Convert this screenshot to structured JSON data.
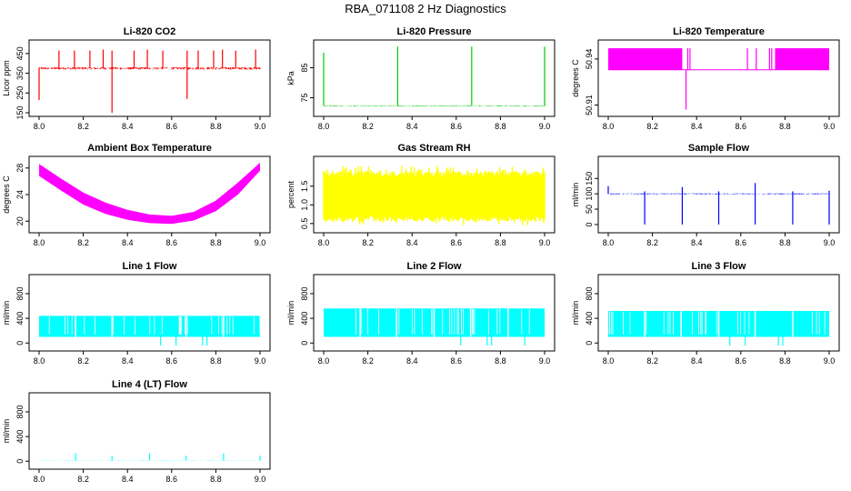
{
  "title": "RBA_071108  2 Hz Diagnostics",
  "colors": {
    "red": "#ff0000",
    "green": "#00cc00",
    "magenta": "#ff00ff",
    "yellow": "#ffff00",
    "blue": "#0000ff",
    "cyan": "#00ffff"
  },
  "chart_data": [
    {
      "type": "line",
      "title": "Li-820 CO2",
      "ylabel": "Licor ppm",
      "xlim": [
        8.0,
        9.0
      ],
      "ylim": [
        150,
        500
      ],
      "xticks": [
        "8.0",
        "8.2",
        "8.4",
        "8.6",
        "8.8",
        "9.0"
      ],
      "yticks": [
        "150",
        "250",
        "350",
        "450"
      ],
      "color": "red",
      "baseline": 375,
      "band": 12,
      "spikes_up": [
        {
          "x": 8.09,
          "y": 465
        },
        {
          "x": 8.16,
          "y": 465
        },
        {
          "x": 8.23,
          "y": 465
        },
        {
          "x": 8.29,
          "y": 470
        },
        {
          "x": 8.33,
          "y": 465
        },
        {
          "x": 8.43,
          "y": 465
        },
        {
          "x": 8.49,
          "y": 470
        },
        {
          "x": 8.56,
          "y": 465
        },
        {
          "x": 8.67,
          "y": 465
        },
        {
          "x": 8.72,
          "y": 465
        },
        {
          "x": 8.79,
          "y": 465
        },
        {
          "x": 8.83,
          "y": 470
        },
        {
          "x": 8.89,
          "y": 465
        },
        {
          "x": 8.98,
          "y": 470
        }
      ],
      "spikes_down": [
        {
          "x": 8.0,
          "y": 215
        },
        {
          "x": 8.33,
          "y": 150
        },
        {
          "x": 8.67,
          "y": 220
        }
      ]
    },
    {
      "type": "line",
      "title": "Li-820 Pressure",
      "ylabel": "kPa",
      "xlim": [
        8.0,
        9.0
      ],
      "ylim": [
        70,
        93
      ],
      "xticks": [
        "8.0",
        "8.2",
        "8.4",
        "8.6",
        "8.8",
        "9.0"
      ],
      "yticks": [
        "75",
        "85"
      ],
      "color": "green",
      "baseline": 72.3,
      "band": 0.3,
      "spikes_up": [
        {
          "x": 8.0,
          "y": 90
        },
        {
          "x": 8.335,
          "y": 92
        },
        {
          "x": 8.67,
          "y": 92
        },
        {
          "x": 9.0,
          "y": 92
        }
      ],
      "spikes_down": []
    },
    {
      "type": "line",
      "title": "Li-820 Temperature",
      "ylabel": "degrees C",
      "xlim": [
        8.0,
        9.0
      ],
      "ylim": [
        50.905,
        50.95
      ],
      "xticks": [
        "8.0",
        "8.2",
        "8.4",
        "8.6",
        "8.8",
        "9.0"
      ],
      "yticks": [
        "50.91",
        "50.94"
      ],
      "color": "magenta",
      "bands": [
        {
          "x0": 8.0,
          "x1": 8.335,
          "lo": 50.933,
          "hi": 50.947
        },
        {
          "x0": 8.755,
          "x1": 9.0,
          "lo": 50.933,
          "hi": 50.947
        }
      ],
      "lowline": 50.933,
      "spikes_up": [
        {
          "x": 8.36,
          "y": 50.947
        },
        {
          "x": 8.37,
          "y": 50.947
        },
        {
          "x": 8.63,
          "y": 50.947
        },
        {
          "x": 8.67,
          "y": 50.947
        },
        {
          "x": 8.73,
          "y": 50.947
        },
        {
          "x": 8.74,
          "y": 50.947
        }
      ],
      "spikes_down": [
        {
          "x": 8.352,
          "y": 50.907
        }
      ]
    },
    {
      "type": "area",
      "title": "Ambient Box Temperature",
      "ylabel": "degrees C",
      "xlim": [
        8.0,
        9.0
      ],
      "ylim": [
        18.8,
        29.2
      ],
      "xticks": [
        "8.0",
        "8.2",
        "8.4",
        "8.6",
        "8.8",
        "9.0"
      ],
      "yticks": [
        "20",
        "24",
        "28"
      ],
      "color": "magenta",
      "curve": [
        {
          "x": 8.0,
          "lo": 26.8,
          "hi": 28.6
        },
        {
          "x": 8.1,
          "lo": 24.6,
          "hi": 26.4
        },
        {
          "x": 8.2,
          "lo": 22.5,
          "hi": 24.3
        },
        {
          "x": 8.3,
          "lo": 21.1,
          "hi": 22.8
        },
        {
          "x": 8.4,
          "lo": 20.2,
          "hi": 21.7
        },
        {
          "x": 8.5,
          "lo": 19.7,
          "hi": 21.0
        },
        {
          "x": 8.6,
          "lo": 19.6,
          "hi": 20.8
        },
        {
          "x": 8.7,
          "lo": 20.1,
          "hi": 21.4
        },
        {
          "x": 8.8,
          "lo": 21.5,
          "hi": 23.1
        },
        {
          "x": 8.9,
          "lo": 24.0,
          "hi": 25.8
        },
        {
          "x": 9.0,
          "lo": 27.6,
          "hi": 28.8
        }
      ]
    },
    {
      "type": "area",
      "title": "Gas Stream RH",
      "ylabel": "percent",
      "xlim": [
        8.0,
        9.0
      ],
      "ylim": [
        0.35,
        2.2
      ],
      "xticks": [
        "8.0",
        "8.2",
        "8.4",
        "8.6",
        "8.8",
        "9.0"
      ],
      "yticks": [
        "0.5",
        "1.0",
        "1.5"
      ],
      "color": "yellow",
      "noise": {
        "lo": 0.55,
        "hi": 1.9,
        "jmin": 0.45,
        "jmax": 2.05
      }
    },
    {
      "type": "line",
      "title": "Sample Flow",
      "ylabel": "ml/min",
      "xlim": [
        8.0,
        9.0
      ],
      "ylim": [
        -15,
        210
      ],
      "xticks": [
        "8.0",
        "8.2",
        "8.4",
        "8.6",
        "8.8",
        "9.0"
      ],
      "yticks": [
        "0",
        "50",
        "100",
        "150"
      ],
      "color": "blue",
      "baseline": 100,
      "band": 3,
      "spikes_up": [
        {
          "x": 8.0,
          "y": 125
        },
        {
          "x": 8.165,
          "y": 108
        },
        {
          "x": 8.335,
          "y": 122
        },
        {
          "x": 8.5,
          "y": 108
        },
        {
          "x": 8.665,
          "y": 135
        },
        {
          "x": 8.835,
          "y": 108
        },
        {
          "x": 9.0,
          "y": 110
        }
      ],
      "spikes_down": [
        {
          "x": 8.165,
          "y": 0
        },
        {
          "x": 8.335,
          "y": 0
        },
        {
          "x": 8.5,
          "y": 0
        },
        {
          "x": 8.665,
          "y": 0
        },
        {
          "x": 8.835,
          "y": 0
        },
        {
          "x": 9.0,
          "y": 0
        }
      ]
    },
    {
      "type": "area",
      "title": "Line 1 Flow",
      "ylabel": "ml/min",
      "xlim": [
        8.0,
        9.0
      ],
      "ylim": [
        -70,
        1050
      ],
      "xticks": [
        "8.0",
        "8.2",
        "8.4",
        "8.6",
        "8.8",
        "9.0"
      ],
      "yticks": [
        "0",
        "400",
        "800"
      ],
      "color": "cyan",
      "block": {
        "lo": 100,
        "hi": 440
      },
      "gaps": [
        8.165,
        8.33,
        8.665,
        8.835
      ],
      "spikes_down": [
        {
          "x": 8.55,
          "y": -40
        },
        {
          "x": 8.62,
          "y": -40
        },
        {
          "x": 8.74,
          "y": -40
        },
        {
          "x": 8.76,
          "y": -40
        }
      ]
    },
    {
      "type": "area",
      "title": "Line 2 Flow",
      "ylabel": "ml/min",
      "xlim": [
        8.0,
        9.0
      ],
      "ylim": [
        -70,
        1050
      ],
      "xticks": [
        "8.0",
        "8.2",
        "8.4",
        "8.6",
        "8.8",
        "9.0"
      ],
      "yticks": [
        "0",
        "400",
        "800"
      ],
      "color": "cyan",
      "block": {
        "lo": 100,
        "hi": 560
      },
      "gaps": [
        8.165,
        8.33,
        8.5,
        8.665,
        8.835
      ],
      "spikes_down": [
        {
          "x": 8.62,
          "y": -40
        },
        {
          "x": 8.74,
          "y": -40
        },
        {
          "x": 8.76,
          "y": -40
        },
        {
          "x": 8.91,
          "y": -40
        }
      ]
    },
    {
      "type": "area",
      "title": "Line 3 Flow",
      "ylabel": "ml/min",
      "xlim": [
        8.0,
        9.0
      ],
      "ylim": [
        -70,
        1050
      ],
      "xticks": [
        "8.0",
        "8.2",
        "8.4",
        "8.6",
        "8.8",
        "9.0"
      ],
      "yticks": [
        "0",
        "400",
        "800"
      ],
      "color": "cyan",
      "block": {
        "lo": 100,
        "hi": 520
      },
      "gaps": [
        8.165,
        8.33,
        8.5,
        8.665,
        8.835
      ],
      "spikes_down": [
        {
          "x": 8.55,
          "y": -40
        },
        {
          "x": 8.62,
          "y": -40
        },
        {
          "x": 8.77,
          "y": -40
        },
        {
          "x": 8.79,
          "y": -40
        }
      ]
    },
    {
      "type": "line",
      "title": "Line 4 (LT) Flow",
      "ylabel": "ml/min",
      "xlim": [
        8.0,
        9.0
      ],
      "ylim": [
        -70,
        1050
      ],
      "xticks": [
        "8.0",
        "8.2",
        "8.4",
        "8.6",
        "8.8",
        "9.0"
      ],
      "yticks": [
        "0",
        "400",
        "800"
      ],
      "color": "cyan",
      "baseline": 10,
      "band": 4,
      "spikes_up": [
        {
          "x": 8.165,
          "y": 130
        },
        {
          "x": 8.33,
          "y": 90
        },
        {
          "x": 8.5,
          "y": 130
        },
        {
          "x": 8.665,
          "y": 90
        },
        {
          "x": 8.835,
          "y": 130
        },
        {
          "x": 9.0,
          "y": 90
        }
      ],
      "spikes_down": []
    }
  ]
}
